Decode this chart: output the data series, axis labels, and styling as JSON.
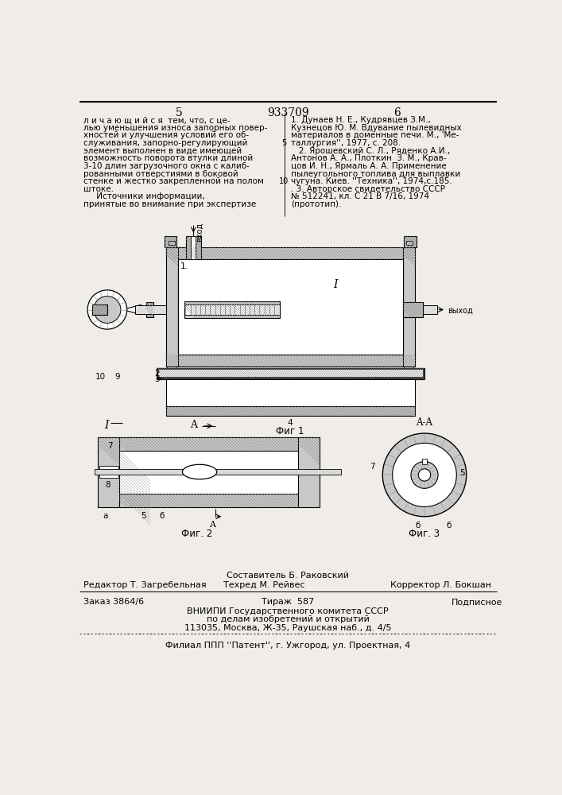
{
  "page_color": "#f0ede8",
  "patent_number": "933709",
  "col_left": "5",
  "col_right": "6",
  "text_left": [
    "л и ч а ю щ и й с я  тем, что, с це-",
    "лью уменьшения износа запорных повер-",
    "хностей и улучшения условий его об-",
    "служивания, запорно-регулирующий",
    "элемент выполнен в виде имеющей",
    "возможность поворота втулки длиной",
    "3-10 длин загрузочного окна с калиб-",
    "рованными отверстиями в боковой",
    "стенке и жестко закрепленной на полом",
    "штоке.",
    "     Источники информации,",
    "принятые во внимание при экспертизе"
  ],
  "text_right": [
    "1. Дунаев Н. Е., Кудрявцев З.М.,",
    "Кузнецов Ю. М. Вдувание пылевидных",
    "материалов в доменные печи. М., 'Ме-",
    "таллургия'', 1977, с. 208.",
    "   2. Ярошевский С. Л., Ряденко А.И.,",
    "Антонов А. А., Плоткин  З. М., Крав-",
    "цов И. Н., Ярмаль А. А. Применение",
    "пылеугольного топлива для выплавки",
    "чугуна. Киев. ''Техника'', 1974,с.185.",
    ". 3. Авторское свидетельство СССР",
    "№ 512241, кл. С 21 В 7/16, 1974",
    "(прототип)."
  ],
  "fig1_caption": "Фиг 1",
  "fig2_caption": "Фиг. 2",
  "fig3_caption": "Фиг. 3",
  "vhod": "вход",
  "vyhod": "выход",
  "editor_line": "Редактор Т. Загребельная",
  "sostavitel_line": "Составитель Б. Раковский",
  "tehred_line": "Техред М. Рейвес",
  "korrektor_line": "Корректор Л. Бокшан",
  "order_line": "Заказ 3864/6",
  "tirazh_line": "Тираж  587",
  "podpisnoe_line": "Подписное",
  "vniiipi_line": "ВНИИПИ Государственного комитета СССР",
  "po_delam_line": "по делам изобретений и открытий",
  "address_line": "113035, Москва, Ж-35, Раушская наб., д. 4/5",
  "filial_line": "Филиал ППП ''Патент'', г. Ужгород, ул. Проектная, 4",
  "hatch_color": "#888888",
  "hatch_bg": "#c8c8c8",
  "line_color": "#111111"
}
